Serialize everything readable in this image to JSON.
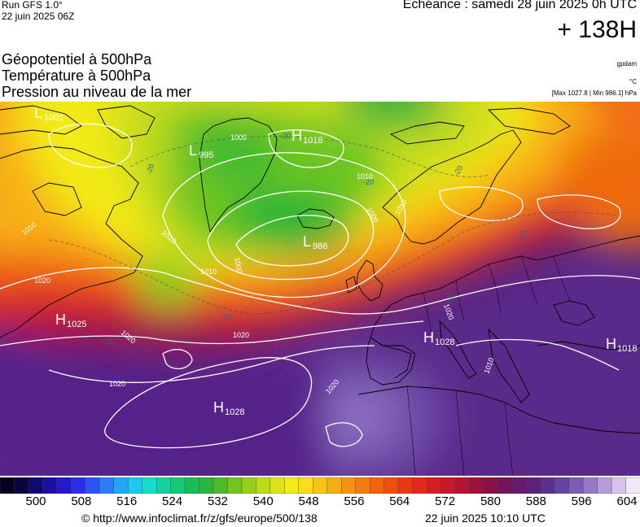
{
  "header": {
    "run": "Run GFS 1.0°",
    "run_date": "22 juin 2025 06Z",
    "echeance": "Echéance : samedi 28 juin 2025 0h UTC",
    "lead": "+ 138H",
    "title1": "Géopotentiel à 500hPa",
    "title2": "Température à 500hPa",
    "title3": "Pression au niveau de la mer",
    "unit1": "gpdam",
    "unit2": "°C",
    "range": "[Max 1027.8 | Min 986.1] hPa"
  },
  "pressure_centers": [
    {
      "letter": "L",
      "value": "1001"
    },
    {
      "letter": "L",
      "value": "995"
    },
    {
      "letter": "H",
      "value": "1018"
    },
    {
      "letter": "L",
      "value": "986"
    },
    {
      "letter": "H",
      "value": "1025"
    },
    {
      "letter": "H",
      "value": "1028"
    },
    {
      "letter": "H",
      "value": "1018"
    },
    {
      "letter": "H",
      "value": "1028"
    }
  ],
  "isobar_labels": [
    "1000",
    "1010",
    "1010",
    "1000",
    "1010",
    "1010",
    "1000",
    "1010",
    "1020",
    "1020",
    "1020",
    "1020",
    "1020",
    "1010",
    "1020",
    "1010"
  ],
  "temp_labels": [
    "-20",
    "-20",
    "-20",
    "-20",
    "-20",
    "-20",
    "-15",
    "-15"
  ],
  "colorbar": {
    "ticks": [
      "500",
      "508",
      "516",
      "524",
      "532",
      "540",
      "548",
      "556",
      "564",
      "572",
      "580",
      "588",
      "596",
      "604"
    ],
    "colors": [
      "#05021e",
      "#0a0540",
      "#100970",
      "#1b0fa0",
      "#2619c8",
      "#2b2ee8",
      "#2a55f5",
      "#2a7ff8",
      "#22a6f5",
      "#1cc9ea",
      "#17dccc",
      "#15d3a0",
      "#18c77a",
      "#1dbb55",
      "#2ab63a",
      "#4bbb2a",
      "#72c422",
      "#98cf1d",
      "#bcd91a",
      "#dce318",
      "#f3eb17",
      "#f9dd16",
      "#f9c515",
      "#f7ad14",
      "#f59413",
      "#f27b12",
      "#ef6311",
      "#ec4d11",
      "#e83a12",
      "#e12b18",
      "#d41e22",
      "#c4182b",
      "#b01534",
      "#9a133c",
      "#85124a",
      "#74145a",
      "#661a6b",
      "#5c227d",
      "#5a3190",
      "#6444a3",
      "#7a5cb4",
      "#9678c6",
      "#b79ad8",
      "#d8c3ea",
      "#f0e8f8"
    ]
  },
  "footer": {
    "url": "© http://www.infoclimat.fr/z/gfs/europe/500/138",
    "timestamp": "22 juin 2025 10:10 UTC"
  }
}
